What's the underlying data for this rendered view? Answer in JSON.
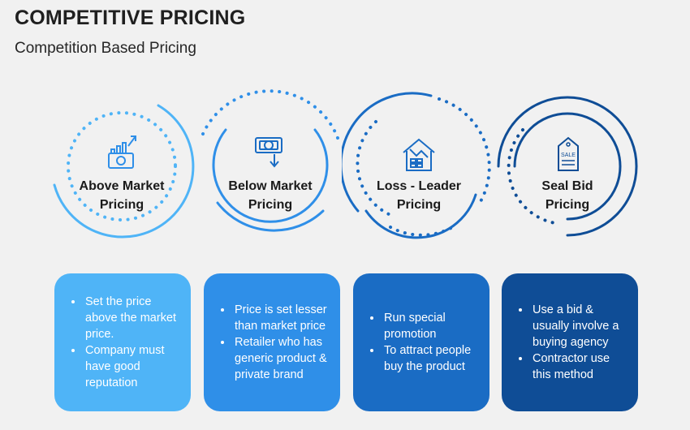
{
  "header": {
    "title": "COMPETITIVE PRICING",
    "subtitle": "Competition Based Pricing"
  },
  "items": [
    {
      "label_line1": "Above Market",
      "label_line2": "Pricing",
      "icon": "money-growth-icon",
      "color": "#4fb4f7",
      "bullets": [
        "Set the price above the market price.",
        "Company must have good reputation"
      ]
    },
    {
      "label_line1": "Below Market",
      "label_line2": "Pricing",
      "icon": "money-down-icon",
      "color": "#2f8fe8",
      "bullets": [
        "Price is set lesser than market price",
        "Retailer who has generic product & private brand"
      ]
    },
    {
      "label_line1": "Loss - Leader",
      "label_line2": "Pricing",
      "icon": "house-loss-icon",
      "color": "#1a6cc4",
      "bullets": [
        "Run special promotion",
        "To attract people buy the product"
      ]
    },
    {
      "label_line1": "Seal Bid",
      "label_line2": "Pricing",
      "icon": "sale-tag-icon",
      "color": "#0f4d96",
      "icon_text": "SALE",
      "bullets": [
        "Use a bid & usually involve a buying agency",
        "Contractor use this method"
      ]
    }
  ]
}
